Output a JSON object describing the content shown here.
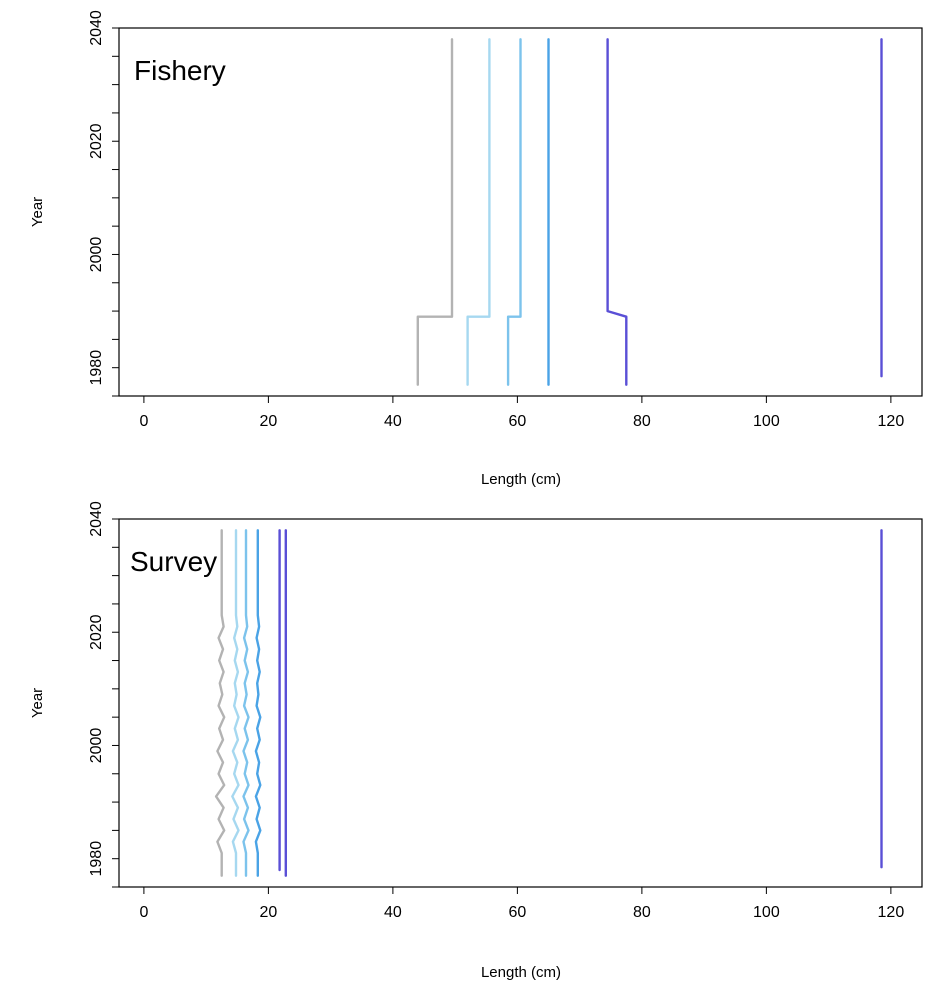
{
  "colors": {
    "level_1": "#b3b3b3",
    "level_2": "#a6d8f0",
    "level_3": "#7cc3ec",
    "level_4": "#4aa3e6",
    "level_5": "#5a4fd6",
    "level_6": "#5a4fd6"
  },
  "chart_data": [
    {
      "type": "line",
      "panel_label": "Fishery",
      "xlabel": "Length (cm)",
      "ylabel": "Year",
      "xlim": [
        -4,
        125
      ],
      "ylim": [
        1975,
        2040
      ],
      "x_ticks": [
        0,
        20,
        40,
        60,
        80,
        100,
        120
      ],
      "y_ticks": [
        1980,
        2000,
        2020,
        2040
      ],
      "grid": false,
      "legend": "none",
      "series": [
        {
          "color_key": "level_1",
          "points": [
            [
              44.0,
              1977
            ],
            [
              44.0,
              1989
            ],
            [
              49.5,
              1989
            ],
            [
              49.5,
              2038
            ]
          ]
        },
        {
          "color_key": "level_2",
          "points": [
            [
              52.0,
              1977
            ],
            [
              52.0,
              1989
            ],
            [
              55.5,
              1989
            ],
            [
              55.5,
              2038
            ]
          ]
        },
        {
          "color_key": "level_3",
          "points": [
            [
              58.5,
              1977
            ],
            [
              58.5,
              1989
            ],
            [
              60.5,
              1989
            ],
            [
              60.5,
              2038
            ]
          ]
        },
        {
          "color_key": "level_4",
          "points": [
            [
              65.0,
              1977
            ],
            [
              65.0,
              1989
            ],
            [
              65.0,
              2038
            ]
          ]
        },
        {
          "color_key": "level_5",
          "points": [
            [
              77.5,
              1977
            ],
            [
              77.5,
              1989
            ],
            [
              74.5,
              1990
            ],
            [
              74.5,
              2038
            ]
          ]
        },
        {
          "color_key": "level_6",
          "points": [
            [
              118.5,
              1978.5
            ],
            [
              118.5,
              2038
            ]
          ]
        }
      ]
    },
    {
      "type": "line",
      "panel_label": "Survey",
      "xlabel": "Length (cm)",
      "ylabel": "Year",
      "xlim": [
        -4,
        125
      ],
      "ylim": [
        1975,
        2040
      ],
      "x_ticks": [
        0,
        20,
        40,
        60,
        80,
        100,
        120
      ],
      "y_ticks": [
        1980,
        2000,
        2020,
        2040
      ],
      "grid": false,
      "legend": "none",
      "series": [
        {
          "color_key": "level_1",
          "points": [
            [
              12.5,
              1977
            ],
            [
              12.5,
              1981
            ],
            [
              11.8,
              1983
            ],
            [
              12.9,
              1985
            ],
            [
              12.0,
              1987
            ],
            [
              12.8,
              1989
            ],
            [
              11.6,
              1991
            ],
            [
              12.9,
              1993
            ],
            [
              12.0,
              1995
            ],
            [
              12.7,
              1997
            ],
            [
              11.8,
              1999
            ],
            [
              12.7,
              2001
            ],
            [
              12.1,
              2003
            ],
            [
              12.9,
              2005
            ],
            [
              12.0,
              2007
            ],
            [
              12.6,
              2009
            ],
            [
              12.2,
              2011
            ],
            [
              12.8,
              2013
            ],
            [
              12.1,
              2015
            ],
            [
              12.7,
              2017
            ],
            [
              12.0,
              2019
            ],
            [
              12.8,
              2021
            ],
            [
              12.5,
              2023
            ],
            [
              12.5,
              2038
            ]
          ]
        },
        {
          "color_key": "level_2",
          "points": [
            [
              14.8,
              1977
            ],
            [
              14.8,
              1981
            ],
            [
              14.3,
              1983
            ],
            [
              15.2,
              1985
            ],
            [
              14.4,
              1987
            ],
            [
              15.1,
              1989
            ],
            [
              14.2,
              1991
            ],
            [
              15.2,
              1993
            ],
            [
              14.5,
              1995
            ],
            [
              15.0,
              1997
            ],
            [
              14.3,
              1999
            ],
            [
              15.1,
              2001
            ],
            [
              14.6,
              2003
            ],
            [
              15.2,
              2005
            ],
            [
              14.5,
              2007
            ],
            [
              14.9,
              2009
            ],
            [
              14.6,
              2011
            ],
            [
              15.1,
              2013
            ],
            [
              14.6,
              2015
            ],
            [
              15.0,
              2017
            ],
            [
              14.5,
              2019
            ],
            [
              15.0,
              2021
            ],
            [
              14.8,
              2023
            ],
            [
              14.8,
              2038
            ]
          ]
        },
        {
          "color_key": "level_3",
          "points": [
            [
              16.4,
              1977
            ],
            [
              16.4,
              1981
            ],
            [
              16.0,
              1983
            ],
            [
              16.8,
              1985
            ],
            [
              16.1,
              1987
            ],
            [
              16.7,
              1989
            ],
            [
              16.0,
              1991
            ],
            [
              16.8,
              1993
            ],
            [
              16.2,
              1995
            ],
            [
              16.6,
              1997
            ],
            [
              16.0,
              1999
            ],
            [
              16.7,
              2001
            ],
            [
              16.2,
              2003
            ],
            [
              16.8,
              2005
            ],
            [
              16.1,
              2007
            ],
            [
              16.5,
              2009
            ],
            [
              16.2,
              2011
            ],
            [
              16.7,
              2013
            ],
            [
              16.2,
              2015
            ],
            [
              16.6,
              2017
            ],
            [
              16.1,
              2019
            ],
            [
              16.6,
              2021
            ],
            [
              16.4,
              2023
            ],
            [
              16.4,
              2038
            ]
          ]
        },
        {
          "color_key": "level_4",
          "points": [
            [
              18.3,
              1977
            ],
            [
              18.3,
              1981
            ],
            [
              18.0,
              1983
            ],
            [
              18.7,
              1985
            ],
            [
              18.1,
              1987
            ],
            [
              18.6,
              1989
            ],
            [
              18.0,
              1991
            ],
            [
              18.7,
              1993
            ],
            [
              18.2,
              1995
            ],
            [
              18.5,
              1997
            ],
            [
              18.0,
              1999
            ],
            [
              18.6,
              2001
            ],
            [
              18.2,
              2003
            ],
            [
              18.7,
              2005
            ],
            [
              18.1,
              2007
            ],
            [
              18.4,
              2009
            ],
            [
              18.2,
              2011
            ],
            [
              18.6,
              2013
            ],
            [
              18.2,
              2015
            ],
            [
              18.5,
              2017
            ],
            [
              18.1,
              2019
            ],
            [
              18.5,
              2021
            ],
            [
              18.3,
              2023
            ],
            [
              18.3,
              2038
            ]
          ]
        },
        {
          "color_key": "level_5",
          "points": [
            [
              21.8,
              1978
            ],
            [
              21.8,
              2038
            ]
          ]
        },
        {
          "color_key": "level_6",
          "points": [
            [
              22.8,
              1977
            ],
            [
              22.8,
              2038
            ]
          ]
        },
        {
          "color_key": "level_6",
          "points": [
            [
              118.5,
              1978.5
            ],
            [
              118.5,
              2038
            ]
          ]
        }
      ]
    }
  ]
}
